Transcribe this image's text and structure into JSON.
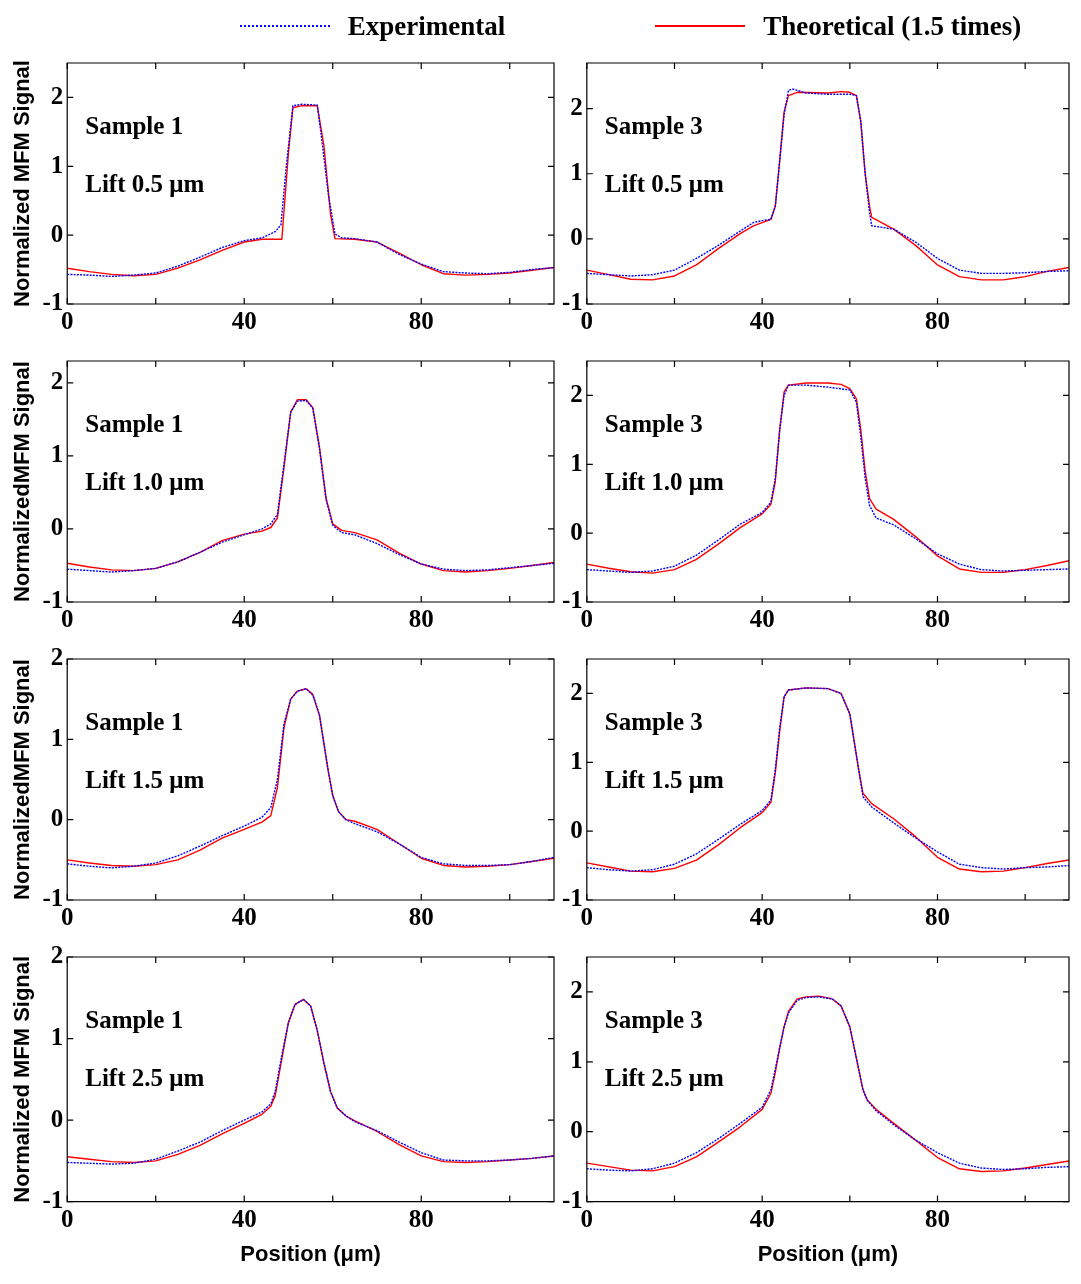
{
  "chart_data": [
    {
      "type": "line",
      "ylabel": "Normalized MFM Signal",
      "annotations": [
        "Sample 1",
        "Lift 0.5 μm"
      ],
      "xlim": [
        0,
        110
      ],
      "xticks": [
        0,
        {
          "value": 20,
          "label": null
        },
        40,
        {
          "value": 60,
          "label": null
        },
        80,
        {
          "value": 100,
          "label": null
        }
      ],
      "ylim": [
        -1,
        2.5
      ],
      "yticks": [
        -1,
        0,
        1,
        2
      ],
      "marker": "none",
      "legend": "top",
      "series": [
        {
          "name": "Experimental",
          "color": "#0000ff",
          "line_style": "dotted",
          "x": [
            0,
            5,
            10,
            15,
            20,
            25,
            30,
            35,
            40,
            44,
            47,
            48.3,
            49.5,
            51,
            53,
            56.5,
            57.5,
            59,
            60.5,
            62,
            65,
            70,
            75,
            80,
            85,
            90,
            95,
            100,
            105,
            110
          ],
          "values": [
            -0.57,
            -0.58,
            -0.6,
            -0.58,
            -0.55,
            -0.45,
            -0.32,
            -0.18,
            -0.08,
            -0.04,
            0.05,
            0.15,
            1.0,
            1.88,
            1.9,
            1.89,
            1.4,
            0.6,
            0.02,
            -0.04,
            -0.05,
            -0.1,
            -0.28,
            -0.42,
            -0.53,
            -0.55,
            -0.56,
            -0.54,
            -0.5,
            -0.47
          ]
        },
        {
          "name": "Theoretical (1.5 times)",
          "color": "#ff0000",
          "line_style": "solid",
          "x": [
            0,
            5,
            10,
            15,
            20,
            25,
            30,
            35,
            40,
            44,
            48.5,
            50,
            51,
            53,
            56.5,
            58,
            59.5,
            60.5,
            65,
            70,
            75,
            80,
            85,
            90,
            95,
            100,
            105,
            110
          ],
          "values": [
            -0.48,
            -0.53,
            -0.57,
            -0.59,
            -0.57,
            -0.48,
            -0.36,
            -0.22,
            -0.1,
            -0.06,
            -0.06,
            1.2,
            1.85,
            1.88,
            1.88,
            1.3,
            0.3,
            -0.05,
            -0.06,
            -0.1,
            -0.26,
            -0.43,
            -0.56,
            -0.58,
            -0.57,
            -0.55,
            -0.51,
            -0.47
          ]
        }
      ]
    },
    {
      "type": "line",
      "annotations": [
        "Sample 3",
        "Lift 0.5 μm"
      ],
      "xlim": [
        0,
        110
      ],
      "xticks": [
        0,
        {
          "value": 20,
          "label": null
        },
        40,
        {
          "value": 60,
          "label": null
        },
        80,
        {
          "value": 100,
          "label": null
        }
      ],
      "ylim": [
        -1,
        2.7
      ],
      "yticks": [
        -1,
        0,
        1,
        2
      ],
      "marker": "none",
      "series": [
        {
          "color": "#0000ff",
          "line_style": "dotted",
          "x": [
            0,
            5,
            10,
            15,
            20,
            25,
            30,
            35,
            38,
            40,
            42,
            43,
            44,
            45,
            46,
            47,
            50,
            55,
            60,
            61.5,
            62.5,
            63.5,
            64.5,
            65,
            70,
            75,
            80,
            85,
            90,
            95,
            100,
            105,
            110
          ],
          "values": [
            -0.53,
            -0.55,
            -0.57,
            -0.55,
            -0.48,
            -0.3,
            -0.1,
            0.12,
            0.25,
            0.28,
            0.3,
            0.5,
            1.2,
            1.9,
            2.28,
            2.3,
            2.24,
            2.22,
            2.22,
            2.2,
            1.8,
            1.0,
            0.4,
            0.2,
            0.15,
            -0.05,
            -0.3,
            -0.48,
            -0.53,
            -0.53,
            -0.52,
            -0.5,
            -0.49
          ]
        },
        {
          "color": "#ff0000",
          "line_style": "solid",
          "x": [
            0,
            5,
            10,
            15,
            20,
            25,
            30,
            35,
            38,
            40,
            42,
            43,
            44,
            45,
            46,
            48,
            55,
            58,
            60,
            61.5,
            62.5,
            63.5,
            64.5,
            65,
            70,
            75,
            80,
            85,
            90,
            95,
            100,
            105,
            110
          ],
          "values": [
            -0.48,
            -0.55,
            -0.62,
            -0.63,
            -0.57,
            -0.4,
            -0.15,
            0.08,
            0.2,
            0.25,
            0.3,
            0.5,
            1.2,
            1.95,
            2.2,
            2.25,
            2.24,
            2.26,
            2.25,
            2.2,
            1.8,
            1.0,
            0.5,
            0.33,
            0.15,
            -0.1,
            -0.4,
            -0.58,
            -0.63,
            -0.63,
            -0.58,
            -0.5,
            -0.44
          ]
        }
      ]
    },
    {
      "type": "line",
      "ylabel": "NormalizedMFM Signal",
      "annotations": [
        "Sample 1",
        "Lift 1.0 μm"
      ],
      "xlim": [
        0,
        110
      ],
      "xticks": [
        0,
        {
          "value": 20,
          "label": null
        },
        40,
        {
          "value": 60,
          "label": null
        },
        80,
        {
          "value": 100,
          "label": null
        }
      ],
      "ylim": [
        -1,
        2.3
      ],
      "yticks": [
        -1,
        0,
        1,
        2
      ],
      "marker": "none",
      "series": [
        {
          "color": "#0000ff",
          "line_style": "dotted",
          "x": [
            0,
            5,
            10,
            15,
            20,
            25,
            30,
            35,
            40,
            44,
            46,
            47.5,
            49,
            50.5,
            52,
            54,
            55.5,
            57,
            58.5,
            60,
            62,
            65,
            70,
            75,
            80,
            85,
            90,
            95,
            100,
            105,
            110
          ],
          "values": [
            -0.55,
            -0.57,
            -0.59,
            -0.57,
            -0.54,
            -0.45,
            -0.32,
            -0.18,
            -0.08,
            0,
            0.07,
            0.2,
            0.9,
            1.6,
            1.75,
            1.76,
            1.65,
            1.1,
            0.4,
            0.05,
            -0.05,
            -0.08,
            -0.2,
            -0.35,
            -0.48,
            -0.55,
            -0.57,
            -0.56,
            -0.53,
            -0.5,
            -0.47
          ]
        },
        {
          "color": "#ff0000",
          "line_style": "solid",
          "x": [
            0,
            5,
            10,
            15,
            20,
            25,
            30,
            35,
            40,
            44,
            46,
            47.5,
            49,
            50.5,
            52,
            54,
            55.5,
            57,
            58.5,
            60,
            62,
            65,
            70,
            75,
            80,
            85,
            90,
            95,
            100,
            105,
            110
          ],
          "values": [
            -0.47,
            -0.52,
            -0.56,
            -0.57,
            -0.54,
            -0.45,
            -0.32,
            -0.16,
            -0.07,
            -0.03,
            0.02,
            0.15,
            0.85,
            1.6,
            1.77,
            1.77,
            1.66,
            1.12,
            0.42,
            0.07,
            -0.02,
            -0.05,
            -0.15,
            -0.33,
            -0.48,
            -0.57,
            -0.59,
            -0.57,
            -0.54,
            -0.5,
            -0.46
          ]
        }
      ]
    },
    {
      "type": "line",
      "annotations": [
        "Sample 3",
        "Lift 1.0 μm"
      ],
      "xlim": [
        0,
        110
      ],
      "xticks": [
        0,
        {
          "value": 20,
          "label": null
        },
        40,
        {
          "value": 60,
          "label": null
        },
        80,
        {
          "value": 100,
          "label": null
        }
      ],
      "ylim": [
        -1,
        2.5
      ],
      "yticks": [
        -1,
        0,
        1,
        2
      ],
      "marker": "none",
      "series": [
        {
          "color": "#0000ff",
          "line_style": "dotted",
          "x": [
            0,
            5,
            10,
            15,
            20,
            25,
            30,
            35,
            40,
            42,
            43,
            44,
            45,
            46,
            50,
            55,
            60,
            61.5,
            62.5,
            63.5,
            64.5,
            66,
            70,
            75,
            80,
            85,
            90,
            95,
            100,
            105,
            110
          ],
          "values": [
            -0.53,
            -0.55,
            -0.57,
            -0.55,
            -0.48,
            -0.32,
            -0.1,
            0.13,
            0.3,
            0.45,
            0.8,
            1.5,
            2.0,
            2.15,
            2.15,
            2.12,
            2.08,
            1.9,
            1.4,
            0.8,
            0.4,
            0.22,
            0.12,
            -0.08,
            -0.3,
            -0.45,
            -0.53,
            -0.55,
            -0.54,
            -0.53,
            -0.52
          ]
        },
        {
          "color": "#ff0000",
          "line_style": "solid",
          "x": [
            0,
            5,
            10,
            15,
            20,
            25,
            30,
            35,
            40,
            42,
            43,
            44,
            45,
            46,
            50,
            55,
            58,
            60,
            61.5,
            62.5,
            63.5,
            64.5,
            66,
            70,
            75,
            80,
            85,
            90,
            95,
            100,
            105,
            110
          ],
          "values": [
            -0.45,
            -0.51,
            -0.56,
            -0.58,
            -0.53,
            -0.38,
            -0.16,
            0.08,
            0.28,
            0.42,
            0.75,
            1.5,
            2.05,
            2.15,
            2.18,
            2.18,
            2.16,
            2.1,
            1.95,
            1.5,
            0.9,
            0.5,
            0.35,
            0.2,
            -0.05,
            -0.33,
            -0.52,
            -0.57,
            -0.57,
            -0.53,
            -0.47,
            -0.4
          ]
        }
      ]
    },
    {
      "type": "line",
      "ylabel": "NormalizedMFM Signal",
      "annotations": [
        "Sample 1",
        "Lift 1.5 μm"
      ],
      "xlim": [
        0,
        110
      ],
      "xticks": [
        0,
        {
          "value": 20,
          "label": null
        },
        40,
        {
          "value": 60,
          "label": null
        },
        80,
        {
          "value": 100,
          "label": null
        }
      ],
      "ylim": [
        -1,
        2
      ],
      "yticks": [
        -1,
        0,
        1,
        2
      ],
      "marker": "none",
      "series": [
        {
          "color": "#0000ff",
          "line_style": "dotted",
          "x": [
            0,
            5,
            10,
            15,
            20,
            25,
            30,
            35,
            40,
            44,
            46,
            47.5,
            49,
            50.5,
            52,
            54,
            55.5,
            57,
            58,
            59,
            60,
            61.3,
            63,
            65,
            70,
            75,
            80,
            85,
            90,
            95,
            100,
            105,
            110
          ],
          "values": [
            -0.55,
            -0.58,
            -0.6,
            -0.58,
            -0.54,
            -0.45,
            -0.33,
            -0.2,
            -0.08,
            0.03,
            0.15,
            0.5,
            1.2,
            1.5,
            1.6,
            1.63,
            1.55,
            1.3,
            0.95,
            0.6,
            0.3,
            0.1,
            0,
            -0.05,
            -0.15,
            -0.3,
            -0.47,
            -0.55,
            -0.57,
            -0.57,
            -0.56,
            -0.52,
            -0.47
          ]
        },
        {
          "color": "#ff0000",
          "line_style": "solid",
          "x": [
            0,
            5,
            10,
            15,
            20,
            25,
            30,
            35,
            40,
            44,
            46,
            47.5,
            49,
            50.5,
            52,
            54,
            55.5,
            57,
            58,
            59,
            60,
            61.3,
            63,
            65,
            70,
            75,
            80,
            85,
            90,
            95,
            100,
            105,
            110
          ],
          "values": [
            -0.5,
            -0.54,
            -0.57,
            -0.58,
            -0.56,
            -0.5,
            -0.38,
            -0.23,
            -0.12,
            -0.03,
            0.05,
            0.4,
            1.15,
            1.5,
            1.6,
            1.63,
            1.56,
            1.3,
            0.95,
            0.6,
            0.3,
            0.1,
            0,
            -0.02,
            -0.12,
            -0.3,
            -0.48,
            -0.57,
            -0.59,
            -0.58,
            -0.56,
            -0.52,
            -0.48
          ]
        }
      ]
    },
    {
      "type": "line",
      "annotations": [
        "Sample 3",
        "Lift 1.5 μm"
      ],
      "xlim": [
        0,
        110
      ],
      "xticks": [
        0,
        {
          "value": 20,
          "label": null
        },
        40,
        {
          "value": 60,
          "label": null
        },
        80,
        {
          "value": 100,
          "label": null
        }
      ],
      "ylim": [
        -1,
        2.5
      ],
      "yticks": [
        -1,
        0,
        1,
        2
      ],
      "marker": "none",
      "series": [
        {
          "color": "#0000ff",
          "line_style": "dotted",
          "x": [
            0,
            5,
            10,
            15,
            20,
            25,
            30,
            35,
            40,
            42,
            43,
            44,
            45,
            46,
            50,
            55,
            58,
            60,
            61,
            62,
            63,
            65,
            70,
            75,
            80,
            85,
            90,
            95,
            100,
            105,
            110
          ],
          "values": [
            -0.53,
            -0.56,
            -0.58,
            -0.56,
            -0.48,
            -0.33,
            -0.12,
            0.1,
            0.3,
            0.45,
            0.9,
            1.5,
            1.95,
            2.05,
            2.08,
            2.07,
            2.0,
            1.7,
            1.3,
            0.9,
            0.5,
            0.35,
            0.12,
            -0.1,
            -0.3,
            -0.48,
            -0.53,
            -0.55,
            -0.53,
            -0.52,
            -0.5
          ]
        },
        {
          "color": "#ff0000",
          "line_style": "solid",
          "x": [
            0,
            5,
            10,
            15,
            20,
            25,
            30,
            35,
            40,
            42,
            43,
            44,
            45,
            46,
            50,
            55,
            58,
            60,
            61,
            62,
            63,
            65,
            70,
            75,
            80,
            85,
            90,
            95,
            100,
            105,
            110
          ],
          "values": [
            -0.46,
            -0.52,
            -0.58,
            -0.59,
            -0.54,
            -0.42,
            -0.2,
            0.05,
            0.27,
            0.42,
            0.85,
            1.45,
            1.95,
            2.05,
            2.08,
            2.07,
            2.0,
            1.7,
            1.3,
            0.9,
            0.55,
            0.4,
            0.18,
            -0.08,
            -0.38,
            -0.55,
            -0.59,
            -0.58,
            -0.53,
            -0.47,
            -0.42
          ]
        }
      ]
    },
    {
      "type": "line",
      "ylabel": "Normalized MFM Signal",
      "xlabel": "Position (μm)",
      "annotations": [
        "Sample 1",
        "Lift 2.5 μm"
      ],
      "xlim": [
        0,
        110
      ],
      "xticks": [
        0,
        {
          "value": 20,
          "label": null
        },
        40,
        {
          "value": 60,
          "label": null
        },
        80,
        {
          "value": 100,
          "label": null
        }
      ],
      "ylim": [
        -1,
        2
      ],
      "yticks": [
        -1,
        0,
        1,
        2
      ],
      "marker": "none",
      "series": [
        {
          "color": "#0000ff",
          "line_style": "dotted",
          "x": [
            0,
            5,
            10,
            15,
            20,
            25,
            30,
            35,
            40,
            44,
            46,
            47,
            48.5,
            50,
            51.5,
            53.4,
            55,
            56.5,
            58,
            59.5,
            61,
            63,
            65,
            70,
            75,
            80,
            85,
            90,
            95,
            100,
            105,
            110
          ],
          "values": [
            -0.52,
            -0.53,
            -0.54,
            -0.53,
            -0.48,
            -0.38,
            -0.27,
            -0.13,
            0,
            0.1,
            0.2,
            0.35,
            0.8,
            1.2,
            1.42,
            1.48,
            1.4,
            1.1,
            0.7,
            0.35,
            0.15,
            0.05,
            -0.02,
            -0.13,
            -0.27,
            -0.4,
            -0.49,
            -0.5,
            -0.5,
            -0.49,
            -0.47,
            -0.44
          ]
        },
        {
          "color": "#ff0000",
          "line_style": "solid",
          "x": [
            0,
            5,
            10,
            15,
            20,
            25,
            30,
            35,
            40,
            44,
            46,
            47,
            48.5,
            50,
            51.5,
            53.4,
            55,
            56.5,
            58,
            59.5,
            61,
            63,
            65,
            70,
            75,
            80,
            85,
            90,
            95,
            100,
            105,
            110
          ],
          "values": [
            -0.45,
            -0.48,
            -0.51,
            -0.52,
            -0.5,
            -0.42,
            -0.31,
            -0.17,
            -0.04,
            0.07,
            0.17,
            0.3,
            0.75,
            1.2,
            1.42,
            1.48,
            1.4,
            1.1,
            0.7,
            0.35,
            0.15,
            0.05,
            -0.01,
            -0.14,
            -0.3,
            -0.44,
            -0.51,
            -0.52,
            -0.51,
            -0.49,
            -0.47,
            -0.44
          ]
        }
      ]
    },
    {
      "type": "line",
      "xlabel": "Position (μm)",
      "annotations": [
        "Sample 3",
        "Lift 2.5 μm"
      ],
      "xlim": [
        0,
        110
      ],
      "xticks": [
        0,
        {
          "value": 20,
          "label": null
        },
        40,
        {
          "value": 60,
          "label": null
        },
        80,
        {
          "value": 100,
          "label": null
        }
      ],
      "ylim": [
        -1,
        2.5
      ],
      "yticks": [
        -1,
        0,
        1,
        2
      ],
      "marker": "none",
      "series": [
        {
          "color": "#0000ff",
          "line_style": "dotted",
          "x": [
            0,
            5,
            10,
            15,
            20,
            25,
            30,
            35,
            40,
            42,
            43,
            44,
            45,
            46,
            48,
            50,
            53,
            56,
            58,
            60,
            61,
            62,
            63,
            64,
            66,
            70,
            75,
            80,
            85,
            90,
            95,
            100,
            105,
            110
          ],
          "values": [
            -0.53,
            -0.55,
            -0.56,
            -0.53,
            -0.45,
            -0.3,
            -0.1,
            0.12,
            0.35,
            0.6,
            0.9,
            1.2,
            1.5,
            1.7,
            1.88,
            1.92,
            1.93,
            1.9,
            1.8,
            1.5,
            1.2,
            0.9,
            0.6,
            0.45,
            0.3,
            0.1,
            -0.12,
            -0.3,
            -0.45,
            -0.52,
            -0.54,
            -0.53,
            -0.51,
            -0.5
          ]
        },
        {
          "color": "#ff0000",
          "line_style": "solid",
          "x": [
            0,
            5,
            10,
            15,
            20,
            25,
            30,
            35,
            40,
            42,
            43,
            44,
            45,
            46,
            48,
            50,
            53,
            56,
            58,
            60,
            61,
            62,
            63,
            64,
            66,
            70,
            75,
            80,
            85,
            90,
            95,
            100,
            105,
            110
          ],
          "values": [
            -0.45,
            -0.5,
            -0.55,
            -0.56,
            -0.5,
            -0.36,
            -0.15,
            0.07,
            0.32,
            0.55,
            0.85,
            1.2,
            1.5,
            1.72,
            1.9,
            1.93,
            1.94,
            1.9,
            1.8,
            1.5,
            1.2,
            0.9,
            0.6,
            0.45,
            0.32,
            0.12,
            -0.12,
            -0.37,
            -0.53,
            -0.57,
            -0.56,
            -0.52,
            -0.47,
            -0.42
          ]
        }
      ]
    }
  ]
}
